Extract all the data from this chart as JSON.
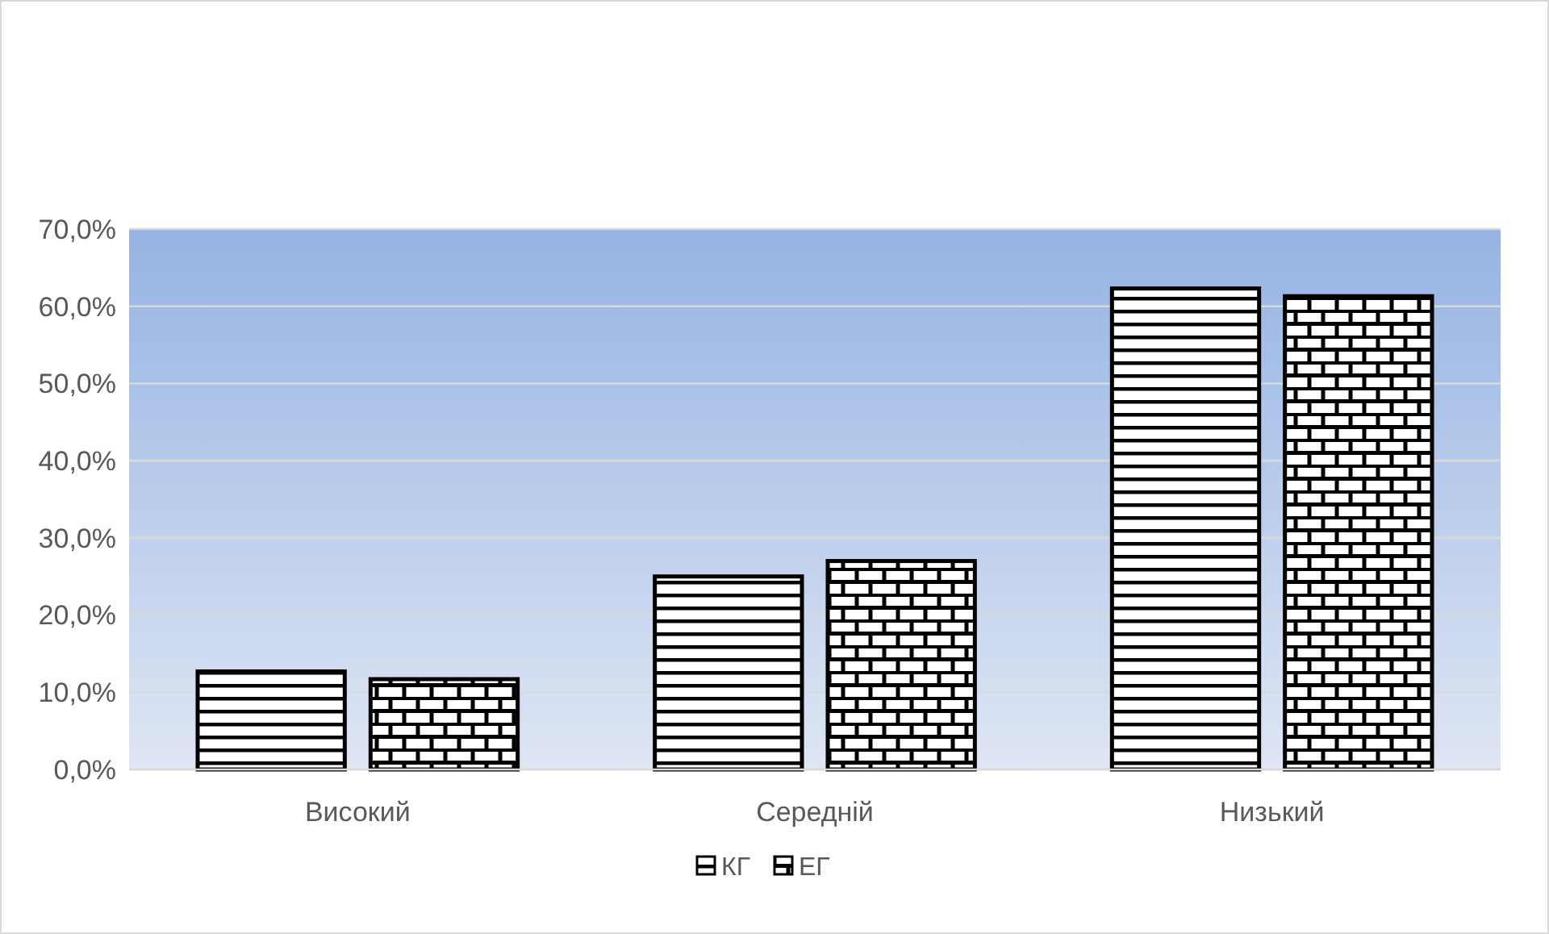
{
  "chart_data": {
    "type": "bar",
    "categories": [
      "Високий",
      "Середній",
      "Низький"
    ],
    "series": [
      {
        "name": "КГ",
        "color": "#000000",
        "values": [
          12.7,
          25.0,
          62.3
        ]
      },
      {
        "name": "ЕГ",
        "color": "#000000",
        "values": [
          11.7,
          27.0,
          61.3
        ]
      }
    ],
    "ylim": [
      0,
      70
    ],
    "yticks": [
      {
        "value": 0,
        "label": "0,0%"
      },
      {
        "value": 10,
        "label": "10,0%"
      },
      {
        "value": 20,
        "label": "20,0%"
      },
      {
        "value": 30,
        "label": "30,0%"
      },
      {
        "value": 40,
        "label": "40,0%"
      },
      {
        "value": 50,
        "label": "50,0%"
      },
      {
        "value": 60,
        "label": "60,0%"
      },
      {
        "value": 70,
        "label": "70,0%"
      }
    ],
    "grid": "y",
    "legend": "bottom"
  }
}
